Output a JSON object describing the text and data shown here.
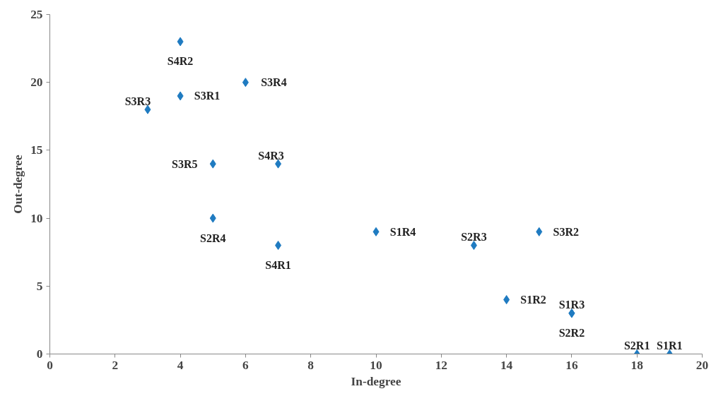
{
  "chart_data": {
    "type": "scatter",
    "xlabel": "In-degree",
    "ylabel": "Out-degree",
    "x": [
      4,
      3,
      4,
      6,
      5,
      7,
      5,
      7,
      10,
      13,
      15,
      14,
      16,
      16,
      18,
      19
    ],
    "values": [
      23,
      18,
      19,
      20,
      14,
      14,
      10,
      8,
      9,
      8,
      9,
      4,
      3,
      3,
      0,
      0
    ],
    "value_labels": [
      "S4R2",
      "S3R3",
      "S3R1",
      "S3R4",
      "S3R5",
      "S4R3",
      "S2R4",
      "S4R1",
      "S1R4",
      "S2R3",
      "S3R2",
      "S1R2",
      "S1R3",
      "S2R2",
      "S2R1",
      "S1R1"
    ],
    "color": "#1f7bc1",
    "marker": "diamond",
    "grid": false,
    "xlim": [
      0,
      20
    ],
    "ylim": [
      0,
      25
    ],
    "xticks": [
      0,
      2,
      4,
      6,
      8,
      10,
      12,
      14,
      16,
      18,
      20
    ],
    "yticks": [
      0,
      5,
      10,
      15,
      20,
      25
    ]
  }
}
